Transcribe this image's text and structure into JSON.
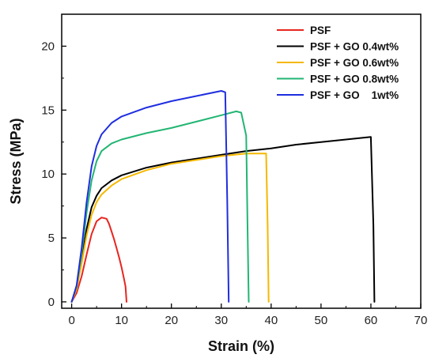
{
  "chart_data": {
    "type": "line",
    "xlabel": "Strain (%)",
    "ylabel": "Stress (MPa)",
    "xlim": [
      -2,
      70
    ],
    "ylim": [
      -0.5,
      22.5
    ],
    "xticks": [
      0,
      10,
      20,
      30,
      40,
      50,
      60,
      70
    ],
    "yticks": [
      0,
      5,
      10,
      15,
      20
    ],
    "grid": false,
    "legend_position": "top-right",
    "series": [
      {
        "name": "PSF",
        "color": "#e8251f",
        "x": [
          0,
          1,
          2,
          3,
          4,
          5,
          6,
          7,
          7.5,
          8,
          8.5,
          9,
          9.5,
          10,
          10.5,
          10.8,
          11
        ],
        "y": [
          0,
          0.7,
          2.0,
          3.7,
          5.3,
          6.3,
          6.6,
          6.5,
          6.1,
          5.5,
          4.9,
          4.2,
          3.5,
          2.7,
          1.8,
          1.2,
          0
        ]
      },
      {
        "name": "PSF + GO 0.4wt%",
        "color": "#000000",
        "x": [
          0,
          1,
          2,
          3,
          4,
          5,
          6,
          8,
          10,
          15,
          20,
          25,
          30,
          35,
          40,
          45,
          50,
          55,
          60,
          60.5,
          60.7
        ],
        "y": [
          0,
          1.1,
          3.3,
          5.7,
          7.4,
          8.3,
          8.9,
          9.5,
          9.9,
          10.5,
          10.9,
          11.2,
          11.5,
          11.8,
          12.0,
          12.3,
          12.5,
          12.7,
          12.9,
          6.0,
          0
        ]
      },
      {
        "name": "PSF + GO 0.6wt%",
        "color": "#f5b800",
        "x": [
          0,
          1,
          2,
          3,
          4,
          5,
          6,
          8,
          10,
          15,
          20,
          25,
          30,
          35,
          39,
          39.3,
          39.5
        ],
        "y": [
          0,
          1.0,
          3.0,
          5.2,
          6.8,
          7.8,
          8.4,
          9.1,
          9.6,
          10.3,
          10.8,
          11.1,
          11.4,
          11.6,
          11.6,
          6.0,
          0
        ]
      },
      {
        "name": "PSF + GO 0.8wt%",
        "color": "#22b573",
        "x": [
          0,
          1,
          2,
          3,
          4,
          5,
          6,
          8,
          10,
          15,
          20,
          25,
          30,
          33,
          34,
          35,
          35.3,
          35.5
        ],
        "y": [
          0,
          1.2,
          3.8,
          7.0,
          9.5,
          11.0,
          11.8,
          12.4,
          12.7,
          13.2,
          13.6,
          14.1,
          14.6,
          14.9,
          14.8,
          13.0,
          5.0,
          0
        ]
      },
      {
        "name": "PSF + GO    1wt%",
        "color": "#1f2ee0",
        "x": [
          0,
          1,
          2,
          3,
          4,
          5,
          6,
          8,
          10,
          15,
          20,
          25,
          30,
          30.8,
          31.2,
          31.5
        ],
        "y": [
          0,
          1.3,
          4.2,
          7.8,
          10.6,
          12.2,
          13.1,
          14.0,
          14.5,
          15.2,
          15.7,
          16.1,
          16.5,
          16.4,
          8.0,
          0
        ]
      }
    ]
  }
}
